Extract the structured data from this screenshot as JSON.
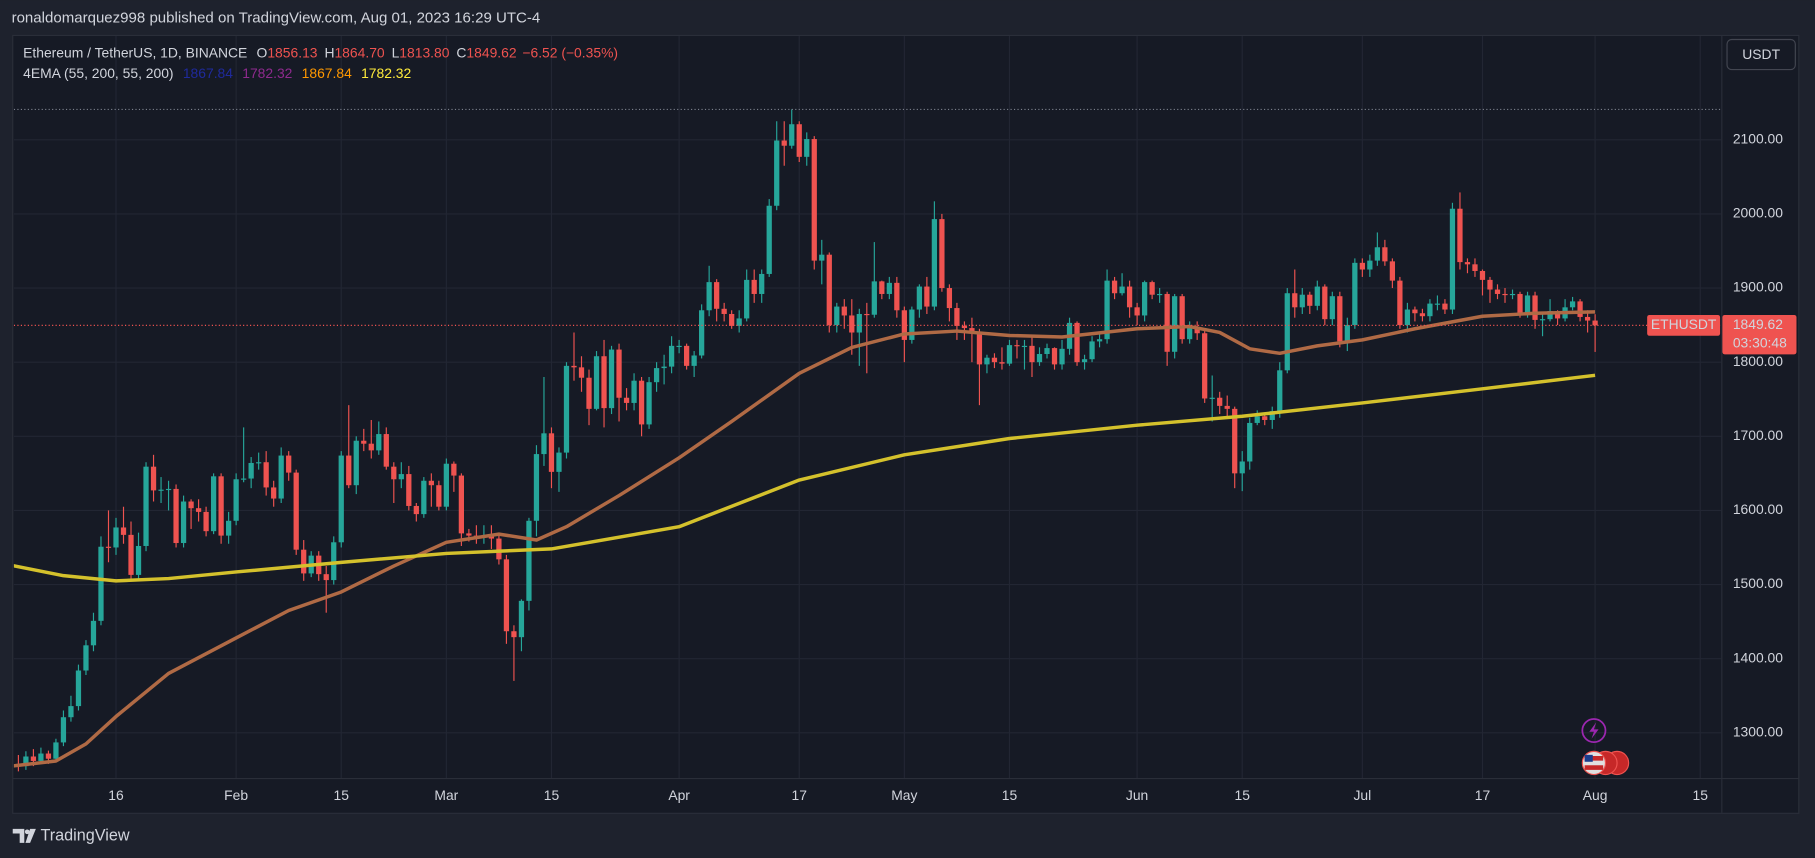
{
  "header": "ronaldomarquez998 published on TradingView.com, Aug 01, 2023 16:29 UTC-4",
  "footer": "TradingView",
  "chart_data": {
    "type": "candlestick",
    "symbol": "Ethereum / TetherUS, 1D, BINANCE",
    "ohlc_legend": [
      {
        "label": "O",
        "value": "1856.13"
      },
      {
        "label": "H",
        "value": "1864.70"
      },
      {
        "label": "L",
        "value": "1813.80"
      },
      {
        "label": "C",
        "value": "1849.62"
      }
    ],
    "change": "−6.52 (−0.35%)",
    "indicator": {
      "name": "4EMA (55, 200, 55, 200)",
      "values": [
        {
          "text": "1867.84",
          "color": "#1f2a9c"
        },
        {
          "text": "1782.32",
          "color": "#8e2a8e"
        },
        {
          "text": "1867.84",
          "color": "#ff9800"
        },
        {
          "text": "1782.32",
          "color": "#ffeb3b"
        }
      ]
    },
    "currency": "USDT",
    "ticker": "ETHUSDT",
    "last_price": {
      "value": 1849.62,
      "label": "1849.62"
    },
    "countdown": "03:30:48",
    "up_color": "#26a69a",
    "down_color": "#ef5350",
    "grid": true,
    "xlim": [
      1.4,
      228.8
    ],
    "ylim": [
      1239,
      2240
    ],
    "xticks": [
      {
        "value": 15,
        "label": "16"
      },
      {
        "value": 31,
        "label": "Feb"
      },
      {
        "value": 45,
        "label": "15"
      },
      {
        "value": 59,
        "label": "Mar"
      },
      {
        "value": 73,
        "label": "15"
      },
      {
        "value": 90,
        "label": "Apr"
      },
      {
        "value": 106,
        "label": "17"
      },
      {
        "value": 120,
        "label": "May"
      },
      {
        "value": 134,
        "label": "15"
      },
      {
        "value": 151,
        "label": "Jun"
      },
      {
        "value": 165,
        "label": "15"
      },
      {
        "value": 181,
        "label": "Jul"
      },
      {
        "value": 197,
        "label": "17"
      },
      {
        "value": 212,
        "label": "Aug"
      },
      {
        "value": 226,
        "label": "15"
      }
    ],
    "yticks": [
      {
        "value": 1300,
        "label": "1300.00"
      },
      {
        "value": 1400,
        "label": "1400.00"
      },
      {
        "value": 1500,
        "label": "1500.00"
      },
      {
        "value": 1600,
        "label": "1600.00"
      },
      {
        "value": 1700,
        "label": "1700.00"
      },
      {
        "value": 1800,
        "label": "1800.00"
      },
      {
        "value": 1900,
        "label": "1900.00"
      },
      {
        "value": 2000,
        "label": "2000.00"
      },
      {
        "value": 2100,
        "label": "2100.00"
      }
    ],
    "candles": {
      "x": [
        1,
        2,
        3,
        4,
        5,
        6,
        7,
        8,
        9,
        10,
        11,
        12,
        13,
        14,
        15,
        16,
        17,
        18,
        19,
        20,
        21,
        22,
        23,
        24,
        25,
        26,
        27,
        28,
        29,
        30,
        31,
        32,
        33,
        34,
        35,
        36,
        37,
        38,
        39,
        40,
        41,
        42,
        43,
        44,
        45,
        46,
        47,
        48,
        49,
        50,
        51,
        52,
        53,
        54,
        55,
        56,
        57,
        58,
        59,
        60,
        61,
        62,
        63,
        64,
        65,
        66,
        67,
        68,
        69,
        70,
        71,
        72,
        73,
        74,
        75,
        76,
        77,
        78,
        79,
        80,
        81,
        82,
        83,
        84,
        85,
        86,
        87,
        88,
        89,
        90,
        91,
        92,
        93,
        94,
        95,
        96,
        97,
        98,
        99,
        100,
        101,
        102,
        103,
        104,
        105,
        106,
        107,
        108,
        109,
        110,
        111,
        112,
        113,
        114,
        115,
        116,
        117,
        118,
        119,
        120,
        121,
        122,
        123,
        124,
        125,
        126,
        127,
        128,
        129,
        130,
        131,
        132,
        133,
        134,
        135,
        136,
        137,
        138,
        139,
        140,
        141,
        142,
        143,
        144,
        145,
        146,
        147,
        148,
        149,
        150,
        151,
        152,
        153,
        154,
        155,
        156,
        157,
        158,
        159,
        160,
        161,
        162,
        163,
        164,
        165,
        166,
        167,
        168,
        169,
        170,
        171,
        172,
        173,
        174,
        175,
        176,
        177,
        178,
        179,
        180,
        181,
        182,
        183,
        184,
        185,
        186,
        187,
        188,
        189,
        190,
        191,
        192,
        193,
        194,
        195,
        196,
        197,
        198,
        199,
        200,
        201,
        202,
        203,
        204,
        205,
        206,
        207,
        208,
        209,
        210,
        211,
        212
      ],
      "open": [
        1250,
        1258,
        1255,
        1268,
        1262,
        1272,
        1265,
        1287,
        1321,
        1336,
        1384,
        1418,
        1451,
        1551,
        1550,
        1577,
        1567,
        1513,
        1552,
        1659,
        1627,
        1628,
        1629,
        1556,
        1612,
        1603,
        1598,
        1572,
        1646,
        1566,
        1586,
        1642,
        1643,
        1664,
        1665,
        1631,
        1616,
        1674,
        1651,
        1547,
        1515,
        1539,
        1514,
        1506,
        1557,
        1674,
        1634,
        1694,
        1690,
        1681,
        1703,
        1659,
        1642,
        1649,
        1606,
        1595,
        1640,
        1634,
        1605,
        1663,
        1647,
        1569,
        1566,
        1564,
        1565,
        1562,
        1534,
        1437,
        1429,
        1478,
        1586,
        1676,
        1704,
        1652,
        1678,
        1795,
        1793,
        1779,
        1737,
        1808,
        1738,
        1817,
        1752,
        1745,
        1775,
        1716,
        1773,
        1792,
        1794,
        1822,
        1822,
        1795,
        1809,
        1870,
        1908,
        1872,
        1865,
        1849,
        1859,
        1911,
        1892,
        1919,
        2011,
        2099,
        2092,
        2121,
        2077,
        2101,
        1937,
        1945,
        1850,
        1875,
        1863,
        1840,
        1865,
        1864,
        1909,
        1892,
        1907,
        1870,
        1830,
        1871,
        1902,
        1875,
        1993,
        1900,
        1873,
        1849,
        1846,
        1840,
        1797,
        1806,
        1800,
        1798,
        1823,
        1822,
        1822,
        1800,
        1811,
        1819,
        1797,
        1818,
        1853,
        1800,
        1804,
        1828,
        1831,
        1910,
        1893,
        1902,
        1874,
        1863,
        1908,
        1891,
        1892,
        1814,
        1889,
        1831,
        1846,
        1839,
        1751,
        1752,
        1741,
        1737,
        1650,
        1666,
        1718,
        1727,
        1722,
        1734,
        1789,
        1893,
        1874,
        1891,
        1876,
        1902,
        1858,
        1889,
        1828,
        1850,
        1934,
        1925,
        1937,
        1955,
        1936,
        1910,
        1850,
        1871,
        1866,
        1862,
        1879,
        1879,
        1871,
        2007,
        1935,
        1932,
        1923,
        1911,
        1898,
        1892,
        1891,
        1892,
        1865,
        1890,
        1857,
        1858,
        1869,
        1859,
        1874,
        1882,
        1861,
        1856.13
      ],
      "high": [
        1262,
        1270,
        1275,
        1278,
        1280,
        1276,
        1292,
        1330,
        1350,
        1392,
        1425,
        1462,
        1565,
        1600,
        1590,
        1605,
        1585,
        1570,
        1665,
        1675,
        1645,
        1640,
        1635,
        1620,
        1615,
        1615,
        1605,
        1650,
        1650,
        1598,
        1650,
        1712,
        1672,
        1678,
        1680,
        1640,
        1685,
        1680,
        1655,
        1560,
        1545,
        1545,
        1525,
        1565,
        1680,
        1742,
        1700,
        1710,
        1722,
        1720,
        1712,
        1665,
        1665,
        1660,
        1610,
        1645,
        1650,
        1640,
        1670,
        1666,
        1650,
        1575,
        1580,
        1580,
        1580,
        1570,
        1540,
        1445,
        1480,
        1590,
        1688,
        1780,
        1712,
        1685,
        1800,
        1840,
        1808,
        1790,
        1815,
        1830,
        1822,
        1825,
        1765,
        1785,
        1780,
        1780,
        1800,
        1810,
        1835,
        1830,
        1825,
        1815,
        1878,
        1930,
        1912,
        1880,
        1870,
        1870,
        1925,
        1925,
        1925,
        2020,
        2125,
        2125,
        2141,
        2125,
        2110,
        2105,
        1965,
        1948,
        1880,
        1885,
        1885,
        1872,
        1880,
        1962,
        1910,
        1915,
        1915,
        1875,
        1875,
        1905,
        1915,
        2017,
        2000,
        1905,
        1880,
        1855,
        1860,
        1845,
        1810,
        1812,
        1820,
        1830,
        1830,
        1830,
        1835,
        1820,
        1825,
        1820,
        1830,
        1860,
        1855,
        1810,
        1835,
        1838,
        1925,
        1915,
        1920,
        1910,
        1880,
        1910,
        1910,
        1900,
        1895,
        1892,
        1892,
        1855,
        1855,
        1842,
        1782,
        1760,
        1755,
        1740,
        1680,
        1725,
        1735,
        1732,
        1740,
        1800,
        1900,
        1925,
        1900,
        1895,
        1910,
        1905,
        1895,
        1895,
        1860,
        1940,
        1940,
        1945,
        1975,
        1965,
        1940,
        1915,
        1880,
        1875,
        1872,
        1885,
        1890,
        1885,
        2015,
        2029,
        1940,
        1940,
        1925,
        1915,
        1905,
        1900,
        1898,
        1895,
        1895,
        1895,
        1865,
        1885,
        1870,
        1885,
        1888,
        1885,
        1870,
        1864.7
      ],
      "low": [
        1242,
        1248,
        1250,
        1255,
        1258,
        1258,
        1262,
        1282,
        1315,
        1330,
        1378,
        1410,
        1445,
        1530,
        1540,
        1555,
        1505,
        1508,
        1545,
        1612,
        1610,
        1600,
        1550,
        1550,
        1575,
        1585,
        1565,
        1568,
        1555,
        1555,
        1580,
        1638,
        1630,
        1655,
        1620,
        1605,
        1610,
        1640,
        1540,
        1505,
        1510,
        1505,
        1462,
        1500,
        1550,
        1630,
        1622,
        1680,
        1670,
        1675,
        1655,
        1610,
        1630,
        1600,
        1585,
        1590,
        1605,
        1600,
        1600,
        1625,
        1552,
        1558,
        1555,
        1555,
        1548,
        1527,
        1420,
        1370,
        1410,
        1465,
        1565,
        1660,
        1630,
        1625,
        1670,
        1775,
        1760,
        1715,
        1735,
        1712,
        1730,
        1720,
        1735,
        1735,
        1700,
        1710,
        1760,
        1770,
        1785,
        1812,
        1790,
        1780,
        1805,
        1862,
        1855,
        1855,
        1845,
        1840,
        1855,
        1880,
        1880,
        1915,
        2005,
        2065,
        2088,
        2070,
        2065,
        1925,
        1905,
        1840,
        1840,
        1845,
        1810,
        1795,
        1785,
        1860,
        1885,
        1885,
        1860,
        1800,
        1825,
        1860,
        1865,
        1870,
        1895,
        1855,
        1830,
        1830,
        1800,
        1742,
        1785,
        1792,
        1790,
        1795,
        1805,
        1790,
        1780,
        1795,
        1805,
        1790,
        1790,
        1810,
        1795,
        1790,
        1800,
        1820,
        1825,
        1885,
        1890,
        1860,
        1850,
        1855,
        1885,
        1880,
        1795,
        1805,
        1825,
        1825,
        1830,
        1745,
        1720,
        1730,
        1725,
        1630,
        1626,
        1655,
        1715,
        1715,
        1710,
        1725,
        1785,
        1860,
        1865,
        1865,
        1870,
        1850,
        1850,
        1820,
        1815,
        1845,
        1915,
        1915,
        1930,
        1930,
        1900,
        1845,
        1840,
        1855,
        1855,
        1855,
        1870,
        1865,
        1865,
        1925,
        1920,
        1915,
        1890,
        1880,
        1885,
        1880,
        1885,
        1860,
        1860,
        1845,
        1835,
        1855,
        1850,
        1855,
        1870,
        1855,
        1840,
        1813.8
      ],
      "close": [
        1258,
        1255,
        1268,
        1262,
        1272,
        1265,
        1287,
        1321,
        1336,
        1384,
        1418,
        1451,
        1551,
        1550,
        1577,
        1567,
        1513,
        1552,
        1659,
        1627,
        1628,
        1629,
        1556,
        1612,
        1603,
        1598,
        1572,
        1646,
        1566,
        1586,
        1642,
        1643,
        1664,
        1665,
        1631,
        1616,
        1674,
        1651,
        1547,
        1515,
        1539,
        1514,
        1506,
        1557,
        1674,
        1634,
        1694,
        1690,
        1681,
        1703,
        1659,
        1642,
        1649,
        1606,
        1595,
        1640,
        1634,
        1605,
        1663,
        1647,
        1569,
        1566,
        1564,
        1565,
        1562,
        1534,
        1437,
        1429,
        1478,
        1586,
        1676,
        1704,
        1652,
        1678,
        1795,
        1793,
        1779,
        1737,
        1808,
        1738,
        1817,
        1752,
        1745,
        1775,
        1716,
        1773,
        1792,
        1794,
        1822,
        1822,
        1795,
        1809,
        1870,
        1908,
        1872,
        1865,
        1849,
        1859,
        1911,
        1892,
        1919,
        2011,
        2099,
        2092,
        2121,
        2077,
        2101,
        1937,
        1945,
        1850,
        1875,
        1863,
        1840,
        1865,
        1864,
        1909,
        1892,
        1907,
        1870,
        1830,
        1871,
        1902,
        1875,
        1993,
        1900,
        1873,
        1849,
        1846,
        1840,
        1797,
        1806,
        1800,
        1798,
        1823,
        1822,
        1822,
        1800,
        1811,
        1819,
        1797,
        1818,
        1853,
        1800,
        1804,
        1828,
        1831,
        1910,
        1893,
        1902,
        1874,
        1863,
        1908,
        1891,
        1892,
        1814,
        1889,
        1831,
        1846,
        1839,
        1751,
        1752,
        1741,
        1737,
        1650,
        1666,
        1718,
        1727,
        1722,
        1734,
        1789,
        1893,
        1874,
        1891,
        1876,
        1902,
        1858,
        1889,
        1828,
        1850,
        1934,
        1925,
        1937,
        1955,
        1936,
        1910,
        1850,
        1871,
        1866,
        1862,
        1879,
        1879,
        1871,
        2007,
        1935,
        1932,
        1923,
        1911,
        1898,
        1892,
        1891,
        1892,
        1865,
        1890,
        1857,
        1858,
        1869,
        1859,
        1874,
        1882,
        1861,
        1856.13,
        1849.62
      ]
    },
    "lines": [
      {
        "color": "#b06a45",
        "x": [
          1,
          7,
          11,
          15,
          22,
          31,
          38,
          45,
          52,
          59,
          66,
          71,
          75,
          82,
          90,
          97,
          106,
          113,
          120,
          127,
          134,
          141,
          151,
          158,
          162,
          166,
          170,
          175,
          181,
          188,
          197,
          204,
          212
        ],
        "values": [
          1255,
          1262,
          1285,
          1322,
          1380,
          1428,
          1465,
          1490,
          1525,
          1557,
          1568,
          1560,
          1578,
          1620,
          1671,
          1720,
          1785,
          1820,
          1838,
          1842,
          1836,
          1834,
          1845,
          1848,
          1840,
          1818,
          1812,
          1822,
          1830,
          1845,
          1862,
          1866,
          1867.84
        ]
      },
      {
        "color": "#d4c12c",
        "x": [
          0,
          8,
          15,
          22,
          31,
          45,
          59,
          73,
          90,
          106,
          120,
          134,
          151,
          165,
          181,
          197,
          212
        ],
        "values": [
          1528,
          1512,
          1505,
          1508,
          1517,
          1530,
          1542,
          1548,
          1578,
          1641,
          1675,
          1697,
          1715,
          1727,
          1745,
          1764,
          1782.32
        ]
      }
    ]
  }
}
